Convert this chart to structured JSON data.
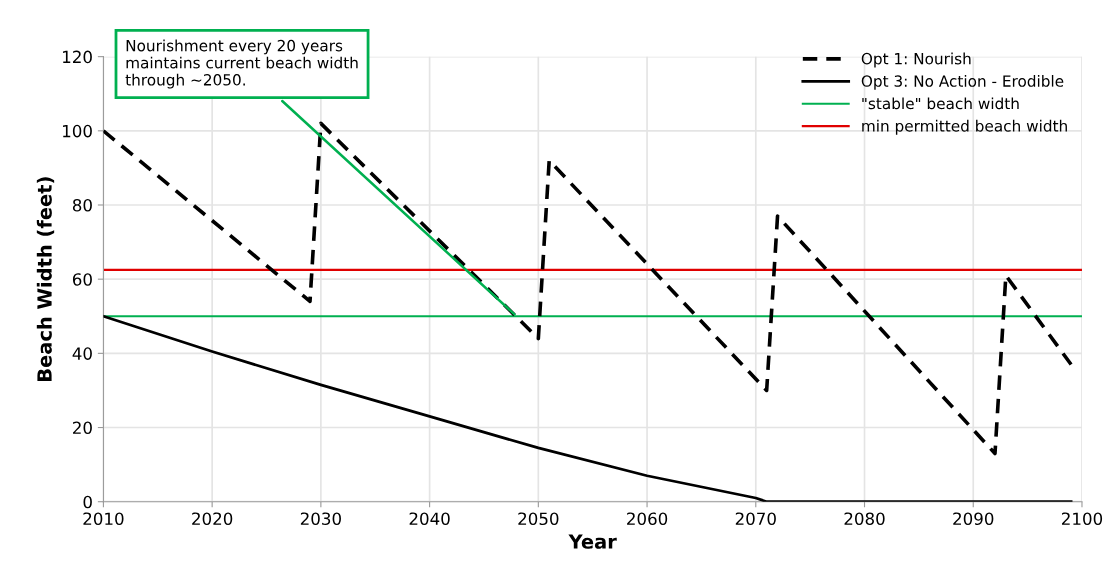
{
  "chart_data": {
    "type": "line",
    "xlabel": "Year",
    "ylabel": "Beach Width (feet)",
    "xlim": [
      2010,
      2100
    ],
    "ylim": [
      0,
      120
    ],
    "xticks": [
      2010,
      2020,
      2030,
      2040,
      2050,
      2060,
      2070,
      2080,
      2090,
      2100
    ],
    "yticks": [
      0,
      20,
      40,
      60,
      80,
      100,
      120
    ],
    "grid": true,
    "legend": "top right",
    "marker": "none",
    "series": [
      {
        "name": "Opt 1: Nourish",
        "color": "#000000",
        "line_style": "dashed",
        "x": [
          2010,
          2029,
          2030,
          2050,
          2051,
          2071,
          2072,
          2092,
          2093,
          2099
        ],
        "values": [
          100,
          54,
          102,
          44,
          92,
          30,
          77,
          13,
          61,
          37
        ]
      },
      {
        "name": "Opt 3: No Action - Erodible",
        "color": "#000000",
        "line_style": "solid",
        "x": [
          2010,
          2020,
          2030,
          2040,
          2050,
          2060,
          2070,
          2071,
          2099
        ],
        "values": [
          50,
          40.5,
          31.5,
          23,
          14.5,
          7,
          1,
          0,
          0
        ]
      }
    ],
    "ref_lines": [
      {
        "axis": "y",
        "value": 50,
        "label": "\"stable\" beach width",
        "color": "#00b050"
      },
      {
        "axis": "y",
        "value": 62.5,
        "label": "min permitted beach width",
        "color": "#e00000"
      }
    ],
    "annotations": [
      {
        "text": "Nourishment every 20 years\nmaintains current beach width\nthrough ~2050.",
        "x": 2048,
        "y": 50
      }
    ]
  }
}
